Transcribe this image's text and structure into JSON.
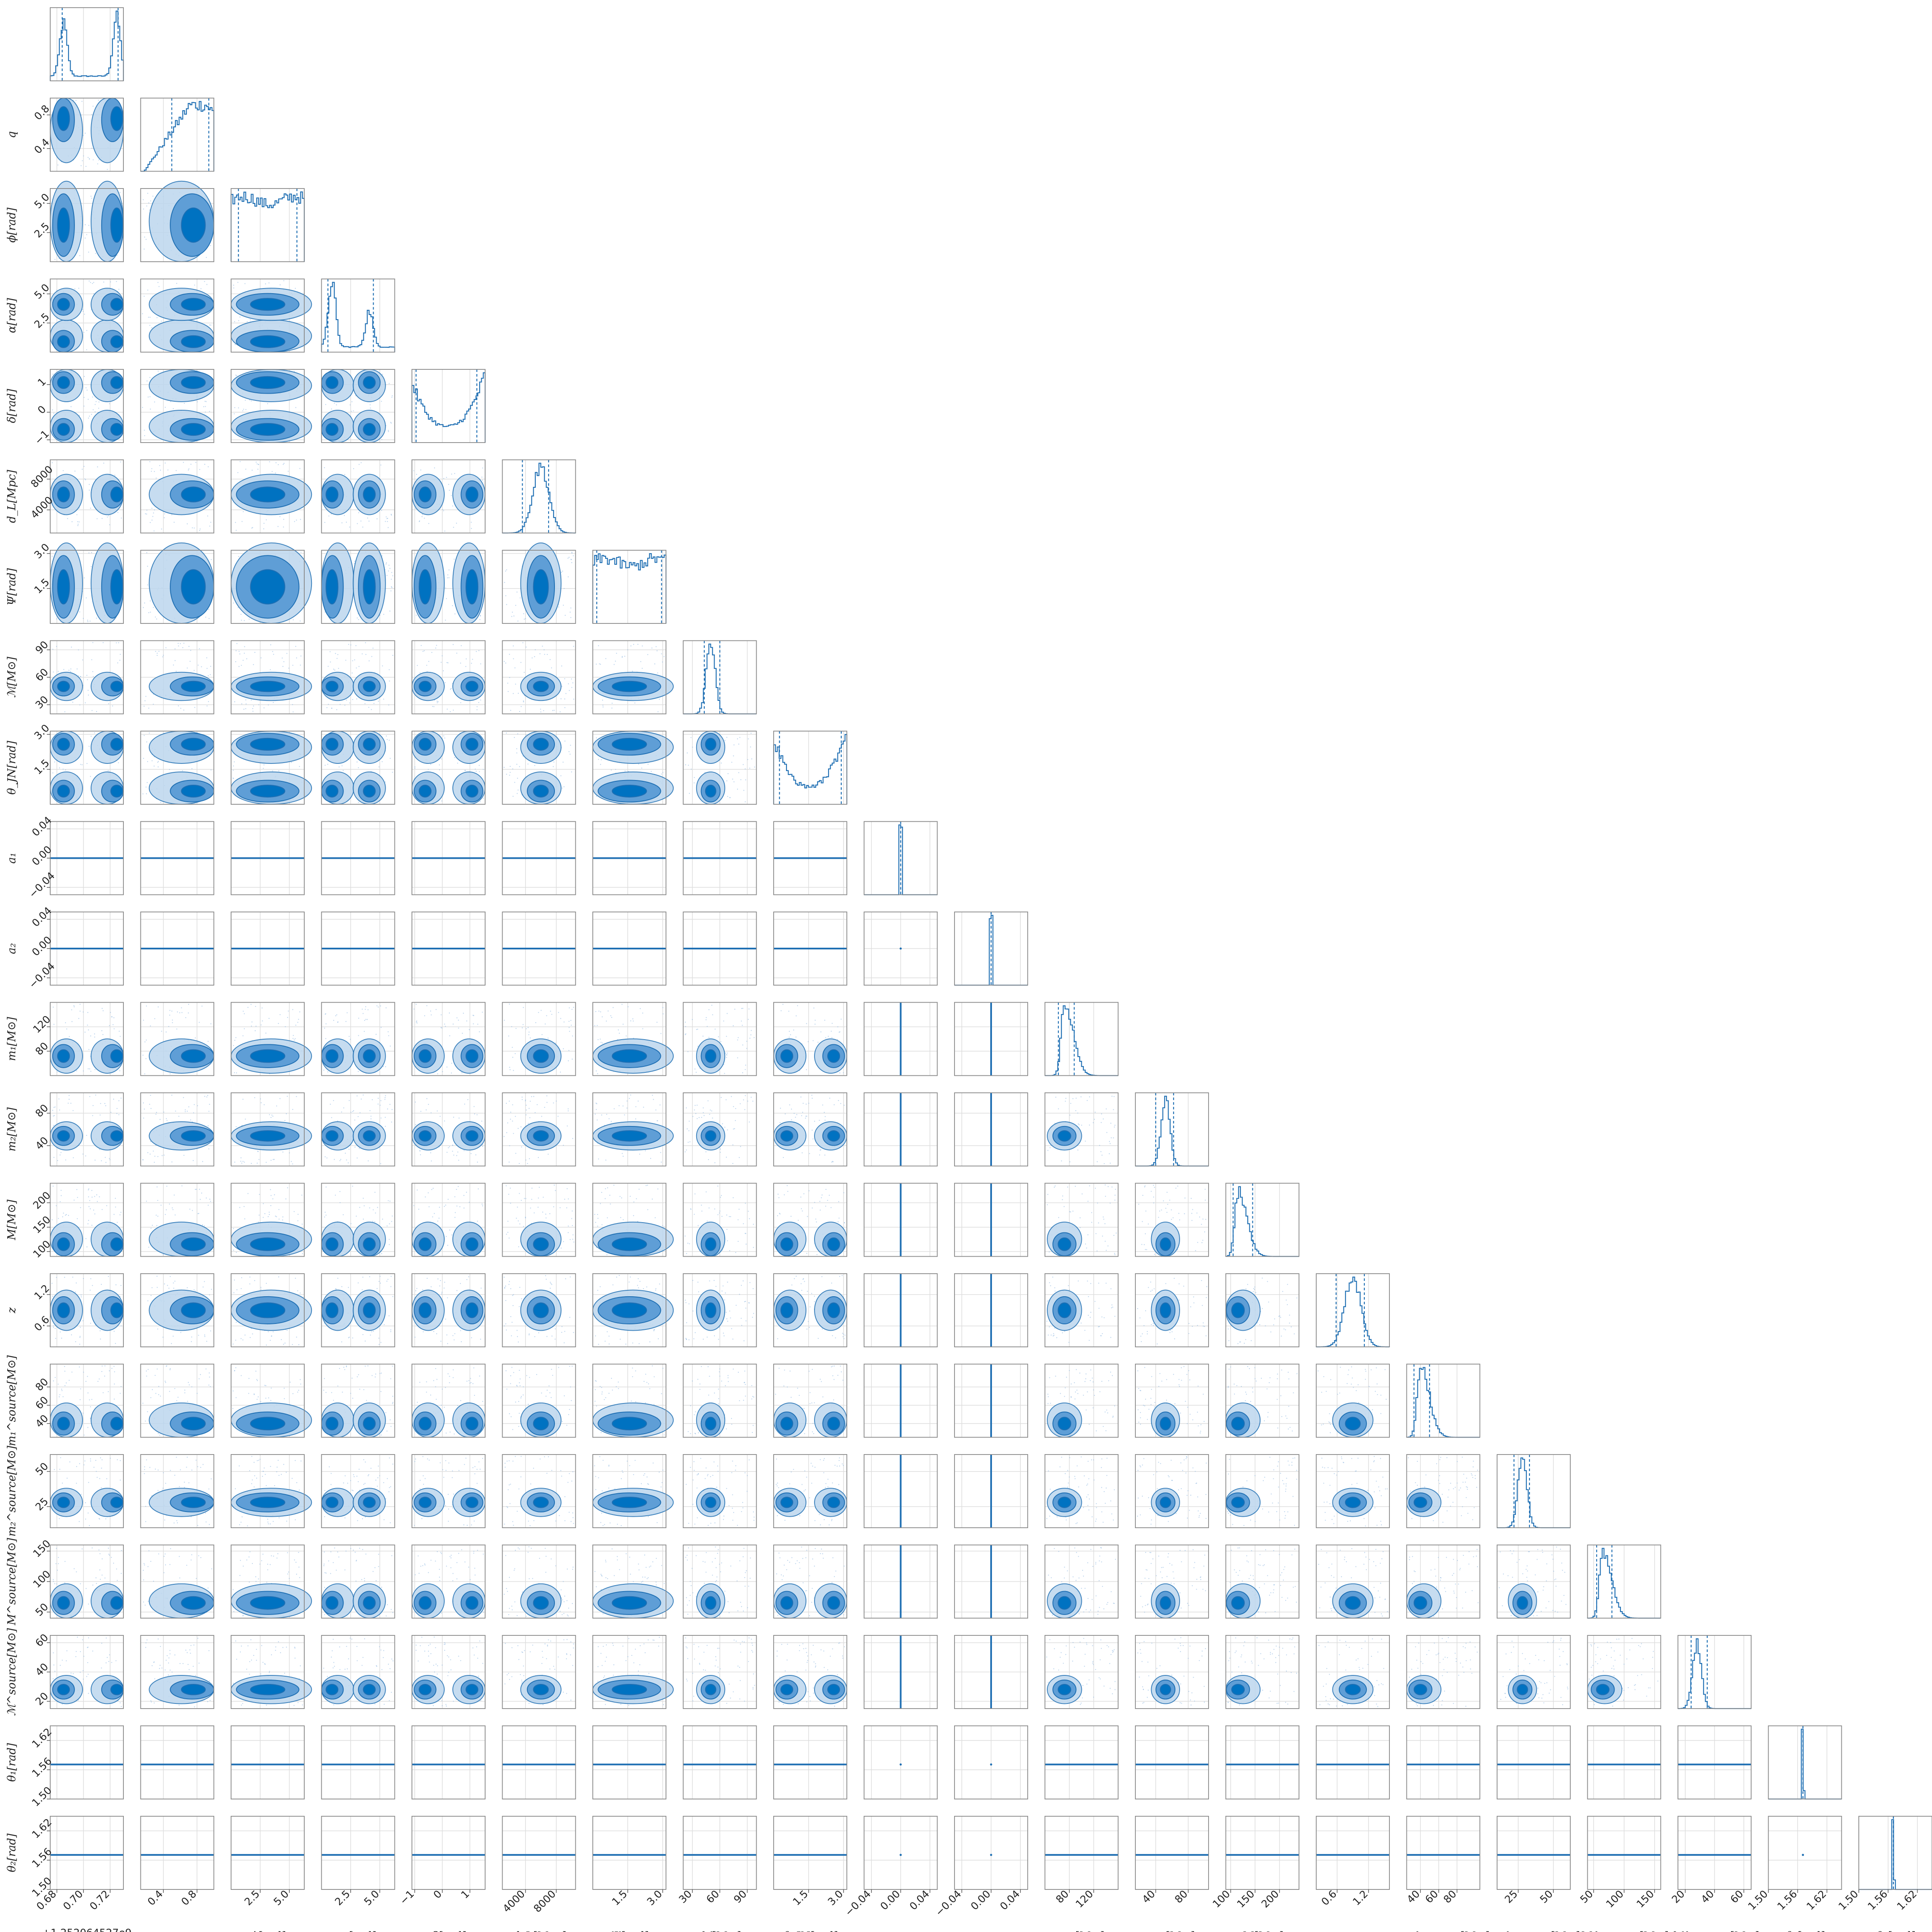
{
  "chart_data": {
    "type": "corner",
    "title": "",
    "parameters": [
      {
        "key": "geocent_time",
        "label": "",
        "range": [
          0.675,
          0.73
        ],
        "ticks": [
          0.68,
          0.7,
          0.72
        ],
        "tick_labels": [
          "0.68",
          "0.70",
          "0.72"
        ],
        "offset": "+1.252064527e9",
        "hist": "bimodal_edges",
        "hist_peaks": [
          0.685,
          0.725
        ],
        "quantiles": [
          0.684,
          0.726
        ]
      },
      {
        "key": "q",
        "label": "q",
        "range": [
          0.13,
          1.0
        ],
        "ticks": [
          0.4,
          0.8
        ],
        "tick_labels": [
          "0.4",
          "0.8"
        ],
        "hist": "rising",
        "quantiles": [
          0.5,
          0.94
        ]
      },
      {
        "key": "phi",
        "label": "ϕ[rad]",
        "range": [
          0,
          6.28
        ],
        "ticks": [
          2.5,
          5.0
        ],
        "tick_labels": [
          "2.5",
          "5.0"
        ],
        "hist": "flat",
        "quantiles": [
          0.63,
          5.65
        ]
      },
      {
        "key": "ra",
        "label": "α[rad]",
        "range": [
          0,
          6.28
        ],
        "ticks": [
          2.5,
          5.0
        ],
        "tick_labels": [
          "2.5",
          "5.0"
        ],
        "hist": "bimodal",
        "hist_peaks": [
          0.9,
          4.1
        ],
        "quantiles": [
          0.55,
          4.45
        ]
      },
      {
        "key": "dec",
        "label": "δ[rad]",
        "range": [
          -1.1,
          1.55
        ],
        "ticks": [
          -1,
          0,
          1
        ],
        "tick_labels": [
          "−1",
          "0",
          "1"
        ],
        "hist": "u_shape",
        "quantiles": [
          -0.95,
          1.25
        ]
      },
      {
        "key": "luminosity_distance",
        "label": "d_L[Mpc]",
        "range": [
          1000,
          10500
        ],
        "ticks": [
          4000,
          8000
        ],
        "tick_labels": [
          "4000",
          "8000"
        ],
        "hist": "peak",
        "hist_peak": 6000,
        "quantiles": [
          3600,
          7000
        ]
      },
      {
        "key": "psi",
        "label": "Ψ[rad]",
        "range": [
          0,
          3.14
        ],
        "ticks": [
          1.5,
          3.0
        ],
        "tick_labels": [
          "1.5",
          "3.0"
        ],
        "hist": "flat",
        "quantiles": [
          0.17,
          2.95
        ]
      },
      {
        "key": "chirp_mass",
        "label": "ℳ[M⊙]",
        "range": [
          20,
          100
        ],
        "ticks": [
          30,
          60,
          90
        ],
        "tick_labels": [
          "30",
          "60",
          "90"
        ],
        "hist": "narrow",
        "hist_peak": 50,
        "quantiles": [
          43,
          60
        ]
      },
      {
        "key": "theta_jn",
        "label": "θ_JN[rad]",
        "range": [
          0,
          3.14
        ],
        "ticks": [
          1.5,
          3.0
        ],
        "tick_labels": [
          "1.5",
          "3.0"
        ],
        "hist": "u_shape",
        "quantiles": [
          0.25,
          2.9
        ]
      },
      {
        "key": "a_1",
        "label": "a₁",
        "range": [
          -0.05,
          0.05
        ],
        "ticks": [
          -0.04,
          0.0,
          0.04
        ],
        "tick_labels": [
          "−0.04",
          "0.00",
          "0.04"
        ],
        "hist": "spike",
        "hist_peak": 0.0,
        "quantiles": [
          0.0,
          0.0
        ]
      },
      {
        "key": "a_2",
        "label": "a₂",
        "range": [
          -0.05,
          0.05
        ],
        "ticks": [
          -0.04,
          0.0,
          0.04
        ],
        "tick_labels": [
          "−0.04",
          "0.00",
          "0.04"
        ],
        "hist": "spike",
        "hist_peak": 0.0,
        "quantiles": [
          0.0,
          0.0
        ]
      },
      {
        "key": "mass_1",
        "label": "m₁[M⊙]",
        "range": [
          40,
          160
        ],
        "ticks": [
          80,
          120
        ],
        "tick_labels": [
          "80",
          "120"
        ],
        "hist": "skewed",
        "hist_peak": 72,
        "quantiles": [
          62,
          88
        ]
      },
      {
        "key": "mass_2",
        "label": "m₂[M⊙]",
        "range": [
          15,
          105
        ],
        "ticks": [
          40,
          80
        ],
        "tick_labels": [
          "40",
          "80"
        ],
        "hist": "narrow",
        "hist_peak": 52,
        "quantiles": [
          40,
          62
        ]
      },
      {
        "key": "total_mass",
        "label": "M[M⊙]",
        "range": [
          90,
          240
        ],
        "ticks": [
          100,
          150,
          200
        ],
        "tick_labels": [
          "100",
          "150",
          "200"
        ],
        "hist": "skewed",
        "hist_peak": 115,
        "quantiles": [
          105,
          145
        ]
      },
      {
        "key": "redshift",
        "label": "z",
        "range": [
          0.2,
          1.6
        ],
        "ticks": [
          0.6,
          1.2
        ],
        "tick_labels": [
          "0.6",
          "1.2"
        ],
        "hist": "peak",
        "hist_peak": 0.9,
        "quantiles": [
          0.58,
          1.12
        ]
      },
      {
        "key": "mass_1_source",
        "label": "m₁^source[M⊙]",
        "range": [
          25,
          105
        ],
        "ticks": [
          40,
          60,
          80
        ],
        "tick_labels": [
          "40",
          "60",
          "80"
        ],
        "hist": "skewed",
        "hist_peak": 40,
        "quantiles": [
          33,
          50
        ]
      },
      {
        "key": "mass_2_source",
        "label": "m₂^source[M⊙]",
        "range": [
          10,
          62
        ],
        "ticks": [
          25,
          50
        ],
        "tick_labels": [
          "25",
          "50"
        ],
        "hist": "narrow",
        "hist_peak": 28,
        "quantiles": [
          22,
          33
        ]
      },
      {
        "key": "total_mass_source",
        "label": "M^source[M⊙]",
        "range": [
          40,
          160
        ],
        "ticks": [
          50,
          100,
          150
        ],
        "tick_labels": [
          "50",
          "100",
          "150"
        ],
        "hist": "skewed",
        "hist_peak": 65,
        "quantiles": [
          55,
          80
        ]
      },
      {
        "key": "chirp_mass_source",
        "label": "ℳ^source[M⊙]",
        "range": [
          15,
          65
        ],
        "ticks": [
          20,
          40,
          60
        ],
        "tick_labels": [
          "20",
          "40",
          "60"
        ],
        "hist": "narrow",
        "hist_peak": 28,
        "quantiles": [
          24,
          35
        ]
      },
      {
        "key": "theta_1",
        "label": "θ₁[rad]",
        "range": [
          1.5,
          1.65
        ],
        "ticks": [
          1.5,
          1.56,
          1.62
        ],
        "tick_labels": [
          "1.50",
          "1.56",
          "1.62"
        ],
        "hist": "spike",
        "hist_peak": 1.5708,
        "quantiles": [
          1.5708,
          1.5708
        ]
      },
      {
        "key": "theta_2",
        "label": "θ₂[rad]",
        "range": [
          1.5,
          1.65
        ],
        "ticks": [
          1.5,
          1.56,
          1.62
        ],
        "tick_labels": [
          "1.50",
          "1.56",
          "1.62"
        ],
        "hist": "spike",
        "hist_peak": 1.5708,
        "quantiles": [
          1.5708,
          1.5708
        ]
      }
    ],
    "colors": {
      "dark": "#0072C1",
      "mid": "#5F9ED6",
      "light": "#BDD7EE",
      "line": "#1F6FB3",
      "points": "#8FB8E0",
      "grid": "#DDDDDD",
      "frame": "#888888"
    },
    "contour_levels": [
      "1σ",
      "2σ",
      "3σ"
    ]
  }
}
